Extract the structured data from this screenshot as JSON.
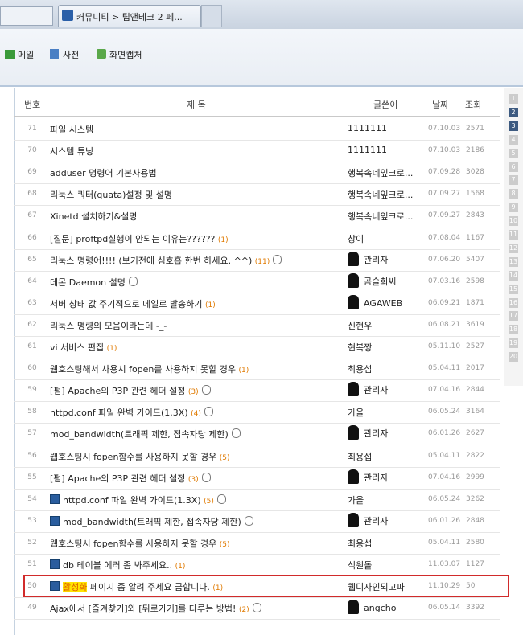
{
  "browser": {
    "tab_title": "커뮤니티 > 팁앤테크 2 페..."
  },
  "toolbar": {
    "items": [
      "메일",
      "사전",
      "화면캡처"
    ]
  },
  "table": {
    "headers": {
      "no": "번호",
      "title": "제 목",
      "author": "글쓴이",
      "date": "날짜",
      "views": "조회"
    },
    "rows": [
      {
        "no": 71,
        "title": "파일 시스템",
        "author": "1111111",
        "date": "07.10.03",
        "views": 2571
      },
      {
        "no": 70,
        "title": "시스템 튜닝",
        "author": "1111111",
        "date": "07.10.03",
        "views": 2186
      },
      {
        "no": 69,
        "title": "adduser 명령어 기본사용법",
        "author": "행복속네잎크로...",
        "date": "07.09.28",
        "views": 3028
      },
      {
        "no": 68,
        "title": "리눅스 쿼터(quata)설정 및 설명",
        "author": "행복속네잎크로...",
        "date": "07.09.27",
        "views": 1568
      },
      {
        "no": 67,
        "title": "Xinetd 설치하기&설명",
        "author": "행복속네잎크로...",
        "date": "07.09.27",
        "views": 2843
      },
      {
        "no": 66,
        "title": "[질문] proftpd실행이 안되는 이유는??????",
        "comments": "(1)",
        "author": "창이",
        "date": "07.08.04",
        "views": 1167
      },
      {
        "no": 65,
        "title": "리눅스 명령어!!!! (보기전에 심호흡 한번 하세요. ^^)",
        "comments": "(11)",
        "attach": true,
        "avatar": true,
        "author": "관리자",
        "date": "07.06.20",
        "views": 5407
      },
      {
        "no": 64,
        "title": "데몬 Daemon 설명",
        "attach": true,
        "avatar": true,
        "author": "곰슬희씨",
        "date": "07.03.16",
        "views": 2598
      },
      {
        "no": 63,
        "title": "서버 상태 값 주기적으로 메일로 발송하기",
        "comments": "(1)",
        "avatar": true,
        "author": "AGAWEB",
        "date": "06.09.21",
        "views": 1871
      },
      {
        "no": 62,
        "title": "리눅스 명령의 모음이라는데 -_-",
        "author": "신현우",
        "date": "06.08.21",
        "views": 3619
      },
      {
        "no": 61,
        "title": "vi 서비스 편집",
        "comments": "(1)",
        "author": "현복짱",
        "date": "05.11.10",
        "views": 2527
      },
      {
        "no": 60,
        "title": "웹호스팅해서 사용시 fopen를 사용하지 못할 경우",
        "comments": "(1)",
        "author": "최용섭",
        "date": "05.04.11",
        "views": 2017
      },
      {
        "no": 59,
        "title": "[펌] Apache의 P3P 관련 헤더 설정",
        "comments": "(3)",
        "attach": true,
        "avatar": true,
        "author": "관리자",
        "date": "07.04.16",
        "views": 2844
      },
      {
        "no": 58,
        "title": "httpd.conf 파일 완벽 가이드(1.3X)",
        "comments": "(4)",
        "attach": true,
        "author": "가을",
        "date": "06.05.24",
        "views": 3164
      },
      {
        "no": 57,
        "title": "mod_bandwidth(트래픽 제한, 접속자당 제한)",
        "attach": true,
        "avatar": true,
        "author": "관리자",
        "date": "06.01.26",
        "views": 2627
      },
      {
        "no": 56,
        "title": "웹호스팅시 fopen함수를 사용하지 못할 경우",
        "comments": "(5)",
        "author": "최용섭",
        "date": "05.04.11",
        "views": 2822
      },
      {
        "no": 55,
        "title": "[펌] Apache의 P3P 관련 헤더 설정",
        "comments": "(3)",
        "attach": true,
        "avatar": true,
        "author": "관리자",
        "date": "07.04.16",
        "views": 2999
      },
      {
        "no": 54,
        "icon": true,
        "title": "httpd.conf 파일 완벽 가이드(1.3X)",
        "comments": "(5)",
        "attach": true,
        "author": "가을",
        "date": "06.05.24",
        "views": 3262
      },
      {
        "no": 53,
        "icon": true,
        "title": "mod_bandwidth(트래픽 제한, 접속자당 제한)",
        "attach": true,
        "avatar": true,
        "author": "관리자",
        "date": "06.01.26",
        "views": 2848
      },
      {
        "no": 52,
        "title": "웹호스팅시 fopen함수를 사용하지 못할 경우",
        "comments": "(5)",
        "author": "최용섭",
        "date": "05.04.11",
        "views": 2580
      },
      {
        "no": 51,
        "icon": true,
        "title": "db 테이블 에러 좀 봐주세요..",
        "comments": "(1)",
        "author": "석원돌",
        "date": "11.03.07",
        "views": 1127
      },
      {
        "no": 50,
        "icon": true,
        "highlight": "활성화",
        "title": "페이지 좀 알려 주세요 급합니다.",
        "comments": "(1)",
        "selected": true,
        "author": "웹디자인되고파",
        "date": "11.10.29",
        "views": 50
      },
      {
        "no": 49,
        "title": "Ajax에서 [즐겨찾기]와 [뒤로가기]를 다루는 방법!",
        "comments": "(2)",
        "attach": true,
        "avatar": true,
        "author": "angcho",
        "date": "06.05.14",
        "views": 3392
      }
    ]
  },
  "side_pages": [
    {
      "n": 1
    },
    {
      "n": 2,
      "active": true
    },
    {
      "n": 3,
      "active": true
    },
    {
      "n": 4
    },
    {
      "n": 5
    },
    {
      "n": 6
    },
    {
      "n": 7
    },
    {
      "n": 8
    },
    {
      "n": 9
    },
    {
      "n": 10
    },
    {
      "n": 11
    },
    {
      "n": 12
    },
    {
      "n": 13
    },
    {
      "n": 14
    },
    {
      "n": 15
    },
    {
      "n": 16
    },
    {
      "n": 17
    },
    {
      "n": 18
    },
    {
      "n": 19
    },
    {
      "n": 20
    }
  ]
}
